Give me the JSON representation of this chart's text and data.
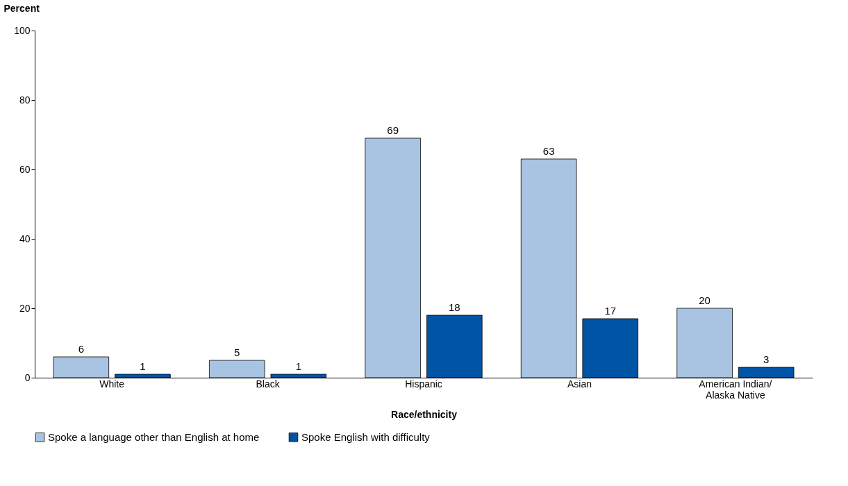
{
  "chart_data": {
    "type": "bar",
    "categories": [
      "White",
      "Black",
      "Hispanic",
      "Asian",
      "American Indian/Alaska Native"
    ],
    "series": [
      {
        "name": "Spoke a language other than English at home",
        "color": "#a9c4e2",
        "values": [
          6,
          5,
          69,
          63,
          20
        ]
      },
      {
        "name": "Spoke English with difficulty",
        "color": "#0054a6",
        "values": [
          1,
          1,
          18,
          17,
          3
        ]
      }
    ],
    "xlabel": "Race/ethnicity",
    "ylabel": "Percent",
    "ylim": [
      0,
      100
    ],
    "yticks": [
      0,
      20,
      40,
      60,
      80,
      100
    ],
    "grid": false,
    "legend": "bottom",
    "data_labels": true
  }
}
